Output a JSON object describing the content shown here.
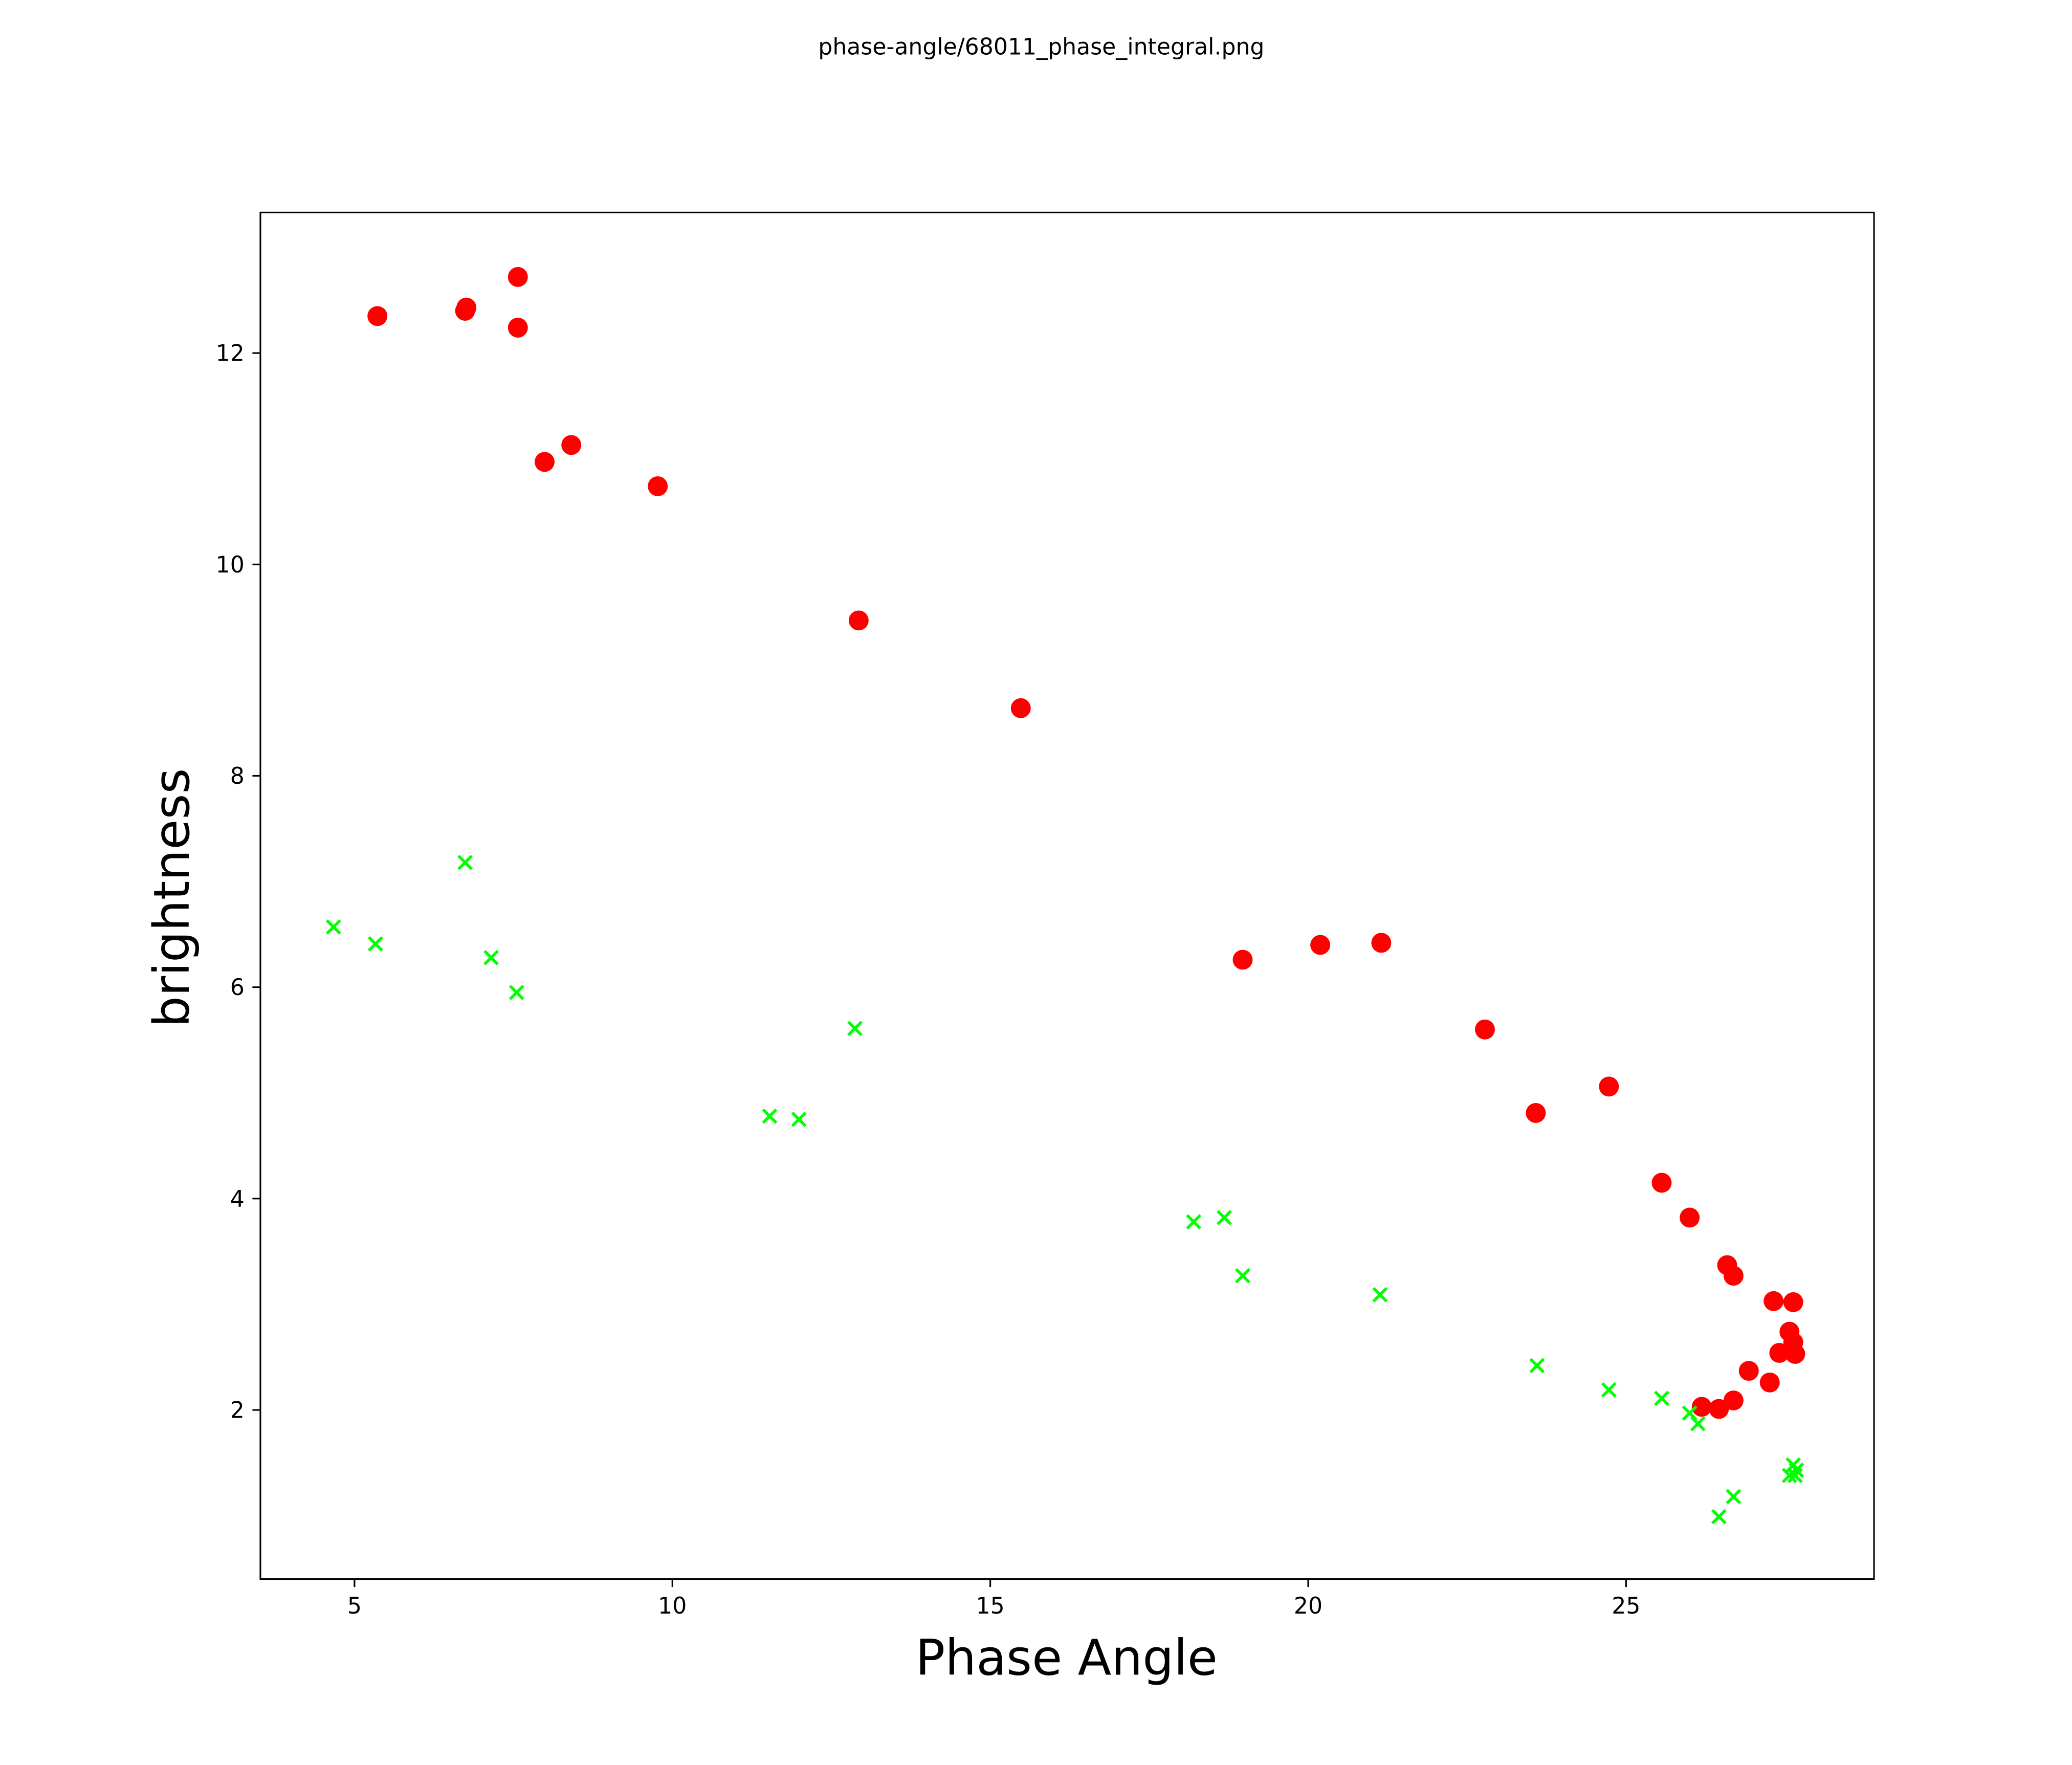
{
  "chart_data": {
    "type": "scatter",
    "title": "phase-angle/68011_phase_integral.png",
    "xlabel": "Phase Angle",
    "ylabel": "brightness",
    "xlim": [
      3.52,
      28.9
    ],
    "ylim": [
      0.4,
      13.33
    ],
    "xticks": [
      5,
      10,
      15,
      20,
      25
    ],
    "yticks": [
      2,
      4,
      6,
      8,
      10,
      12
    ],
    "grid": false,
    "series": [
      {
        "name": "red-circles",
        "marker": "circle",
        "color": "#ff0000",
        "x": [
          5.36,
          6.74,
          6.76,
          7.57,
          7.57,
          7.99,
          8.41,
          9.77,
          12.93,
          15.48,
          18.97,
          20.19,
          21.15,
          22.78,
          23.58,
          24.73,
          25.56,
          26.0,
          26.59,
          26.69,
          27.32,
          27.63,
          27.57,
          27.63,
          27.66,
          27.41,
          26.93,
          27.26,
          26.69,
          26.46,
          26.19
        ],
        "y": [
          12.35,
          12.4,
          12.43,
          12.72,
          12.24,
          10.97,
          11.13,
          10.74,
          9.47,
          8.64,
          6.26,
          6.4,
          6.42,
          5.6,
          4.81,
          5.06,
          4.15,
          3.82,
          3.37,
          3.27,
          3.03,
          3.02,
          2.74,
          2.64,
          2.53,
          2.54,
          2.37,
          2.26,
          2.09,
          2.01,
          2.03
        ]
      },
      {
        "name": "green-crosses",
        "marker": "x",
        "color": "#00ff00",
        "x": [
          4.67,
          5.33,
          6.74,
          7.15,
          7.55,
          11.53,
          11.99,
          12.87,
          18.2,
          18.68,
          18.97,
          21.13,
          23.6,
          24.73,
          25.56,
          26.0,
          26.13,
          26.46,
          26.69,
          27.63,
          27.66,
          27.57,
          27.68
        ],
        "y": [
          6.57,
          6.41,
          7.18,
          6.28,
          5.95,
          4.78,
          4.75,
          5.61,
          3.78,
          3.82,
          3.27,
          3.09,
          2.42,
          2.19,
          2.11,
          1.97,
          1.87,
          0.99,
          1.18,
          1.48,
          1.38,
          1.38,
          1.43
        ]
      }
    ]
  }
}
